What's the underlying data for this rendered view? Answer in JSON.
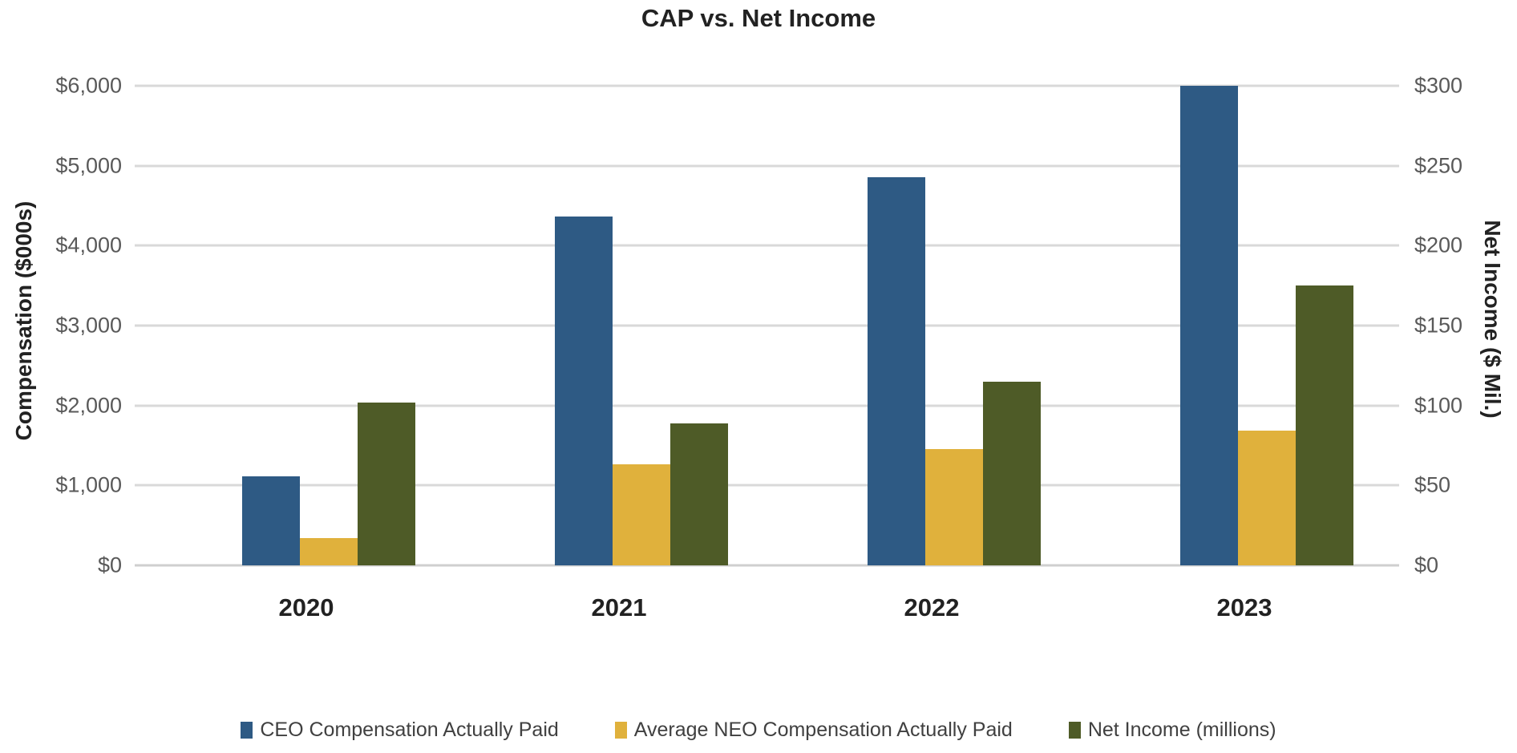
{
  "chart_data": {
    "type": "bar",
    "title": "CAP vs. Net Income",
    "categories": [
      "2020",
      "2021",
      "2022",
      "2023"
    ],
    "series": [
      {
        "name": "CEO Compensation Actually Paid",
        "slug": "ceo-compensation-actually-paid",
        "axis": "left",
        "units": "$000s",
        "color": "#2e5a84",
        "values": [
          1110,
          4370,
          4860,
          6020
        ]
      },
      {
        "name": "Average NEO Compensation Actually Paid",
        "slug": "average-neo-compensation-actually-paid",
        "axis": "left",
        "units": "$000s",
        "color": "#e0b13c",
        "values": [
          340,
          1260,
          1460,
          1690
        ]
      },
      {
        "name": "Net Income (millions)",
        "slug": "net-income-millions",
        "axis": "right",
        "units": "$ millions",
        "color": "#4e5b27",
        "values": [
          102,
          89,
          115,
          175
        ]
      }
    ],
    "left_axis": {
      "label": "Compensation ($000s)",
      "min": 0,
      "max": 6000,
      "ticks": [
        "$6,000",
        "$5,000",
        "$4,000",
        "$3,000",
        "$2,000",
        "$1,000",
        "$0"
      ]
    },
    "right_axis": {
      "label": "Net Income ($ Mil.)",
      "min": 0,
      "max": 300,
      "ticks": [
        "$300",
        "$250",
        "$200",
        "$150",
        "$100",
        "$50",
        "$0"
      ]
    },
    "grid": true,
    "grid_color": "#d9d9d9",
    "legend_position": "bottom"
  }
}
